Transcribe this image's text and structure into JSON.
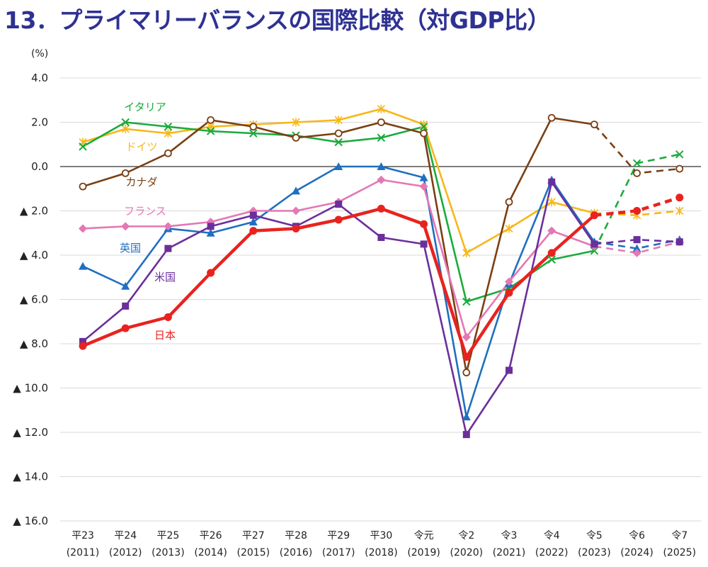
{
  "title": "13．プライマリーバランスの国際比較（対GDP比）",
  "chart_data": {
    "type": "line",
    "title": "13．プライマリーバランスの国際比較（対GDP比）",
    "unit_label": "(%)",
    "ylim": [
      -16,
      4
    ],
    "y_ticks": [
      4,
      2,
      0,
      -2,
      -4,
      -6,
      -8,
      -10,
      -12,
      -14,
      -16
    ],
    "y_tick_labels": [
      "4.0",
      "2.0",
      "0.0",
      "▲ 2.0",
      "▲ 4.0",
      "▲ 6.0",
      "▲ 8.0",
      "▲ 10.0",
      "▲ 12.0",
      "▲ 14.0",
      "▲ 16.0"
    ],
    "categories": [
      "平23",
      "平24",
      "平25",
      "平26",
      "平27",
      "平28",
      "平29",
      "平30",
      "令元",
      "令2",
      "令3",
      "令4",
      "令5",
      "令6",
      "令7"
    ],
    "categories_sub": [
      "(2011)",
      "(2012)",
      "(2013)",
      "(2014)",
      "(2015)",
      "(2016)",
      "(2017)",
      "(2018)",
      "(2019)",
      "(2020)",
      "(2021)",
      "(2022)",
      "(2023)",
      "(2024)",
      "(2025)"
    ],
    "projection_from_index": 13,
    "series": [
      {
        "name": "ドイツ",
        "color": "#f7b719",
        "marker": "asterisk",
        "values": [
          1.1,
          1.7,
          1.5,
          1.8,
          1.9,
          2.0,
          2.1,
          2.6,
          1.9,
          -3.9,
          -2.8,
          -1.6,
          -2.1,
          -2.2,
          -2.0
        ]
      },
      {
        "name": "イタリア",
        "color": "#1aab3c",
        "marker": "x",
        "values": [
          0.9,
          2.0,
          1.8,
          1.6,
          1.5,
          1.4,
          1.1,
          1.3,
          1.8,
          -6.1,
          -5.5,
          -4.2,
          -3.8,
          0.15,
          0.55
        ]
      },
      {
        "name": "カナダ",
        "color": "#7b3f13",
        "marker": "circle-open",
        "values": [
          -0.9,
          -0.3,
          0.6,
          2.1,
          1.8,
          1.3,
          1.5,
          2.0,
          1.5,
          -9.3,
          -1.6,
          2.2,
          1.9,
          -0.3,
          -0.1
        ]
      },
      {
        "name": "英国",
        "color": "#1f6fc0",
        "marker": "triangle",
        "values": [
          -4.5,
          -5.4,
          -2.8,
          -3.0,
          -2.5,
          -1.1,
          0.0,
          0.0,
          -0.5,
          -11.3,
          -5.3,
          -0.6,
          -3.4,
          -3.7,
          -3.3
        ]
      },
      {
        "name": "フランス",
        "color": "#e477b4",
        "marker": "diamond",
        "values": [
          -2.8,
          -2.7,
          -2.7,
          -2.5,
          -2.0,
          -2.0,
          -1.6,
          -0.6,
          -0.9,
          -7.7,
          -5.2,
          -2.9,
          -3.6,
          -3.9,
          -3.4
        ]
      },
      {
        "name": "米国",
        "color": "#6a2f9c",
        "marker": "square",
        "values": [
          -7.9,
          -6.3,
          -3.7,
          -2.7,
          -2.2,
          -2.7,
          -1.7,
          -3.2,
          -3.5,
          -12.1,
          -9.2,
          -0.7,
          -3.5,
          -3.3,
          -3.4
        ]
      },
      {
        "name": "日本",
        "color": "#e8231f",
        "marker": "circle",
        "values": [
          -8.1,
          -7.3,
          -6.8,
          -4.8,
          -2.9,
          -2.8,
          -2.4,
          -1.9,
          -2.6,
          -8.6,
          -5.7,
          -3.9,
          -2.2,
          -2.0,
          -1.4
        ]
      }
    ]
  }
}
